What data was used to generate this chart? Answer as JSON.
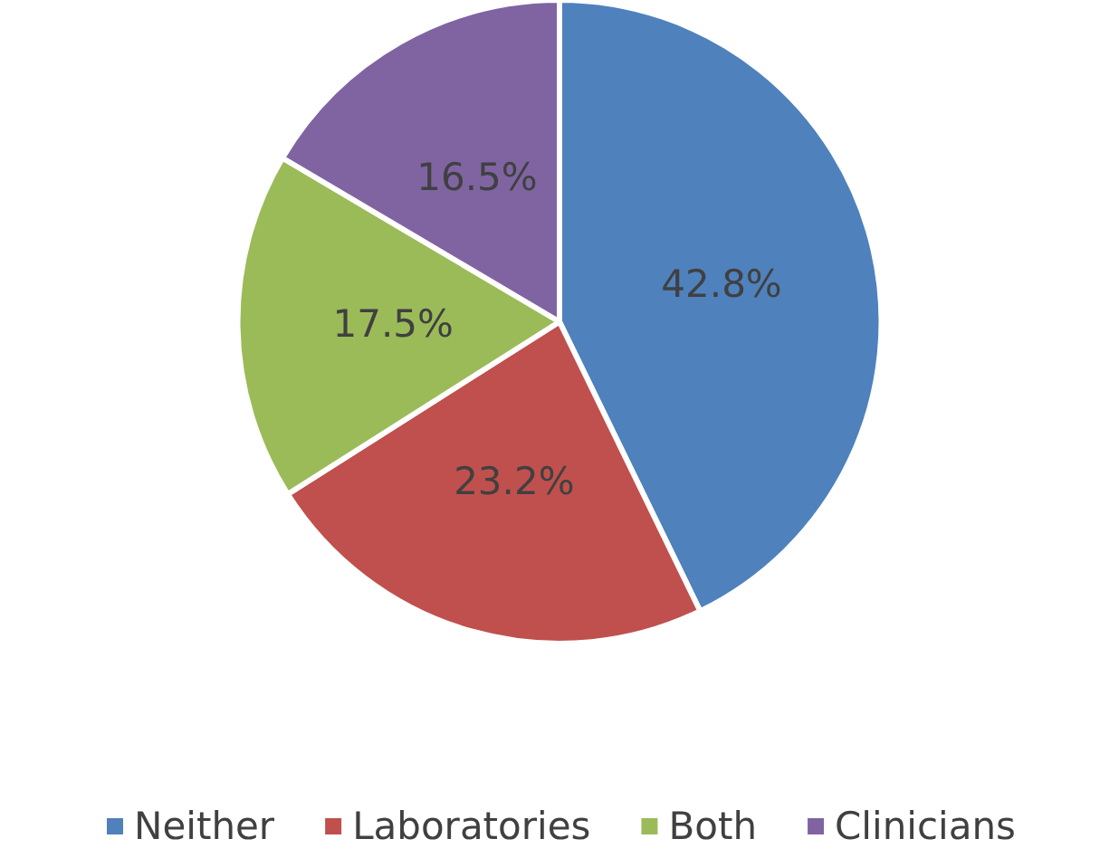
{
  "chart_data": {
    "type": "pie",
    "categories": [
      "Neither",
      "Laboratories",
      "Both",
      "Clinicians"
    ],
    "values": [
      42.8,
      23.2,
      17.5,
      16.5
    ],
    "colors": [
      "#4f81bd",
      "#c0504d",
      "#9bbb59",
      "#8064a2"
    ],
    "value_labels": [
      "42.8%",
      "23.2%",
      "17.5%",
      "16.5%"
    ],
    "legend": "bottom"
  }
}
